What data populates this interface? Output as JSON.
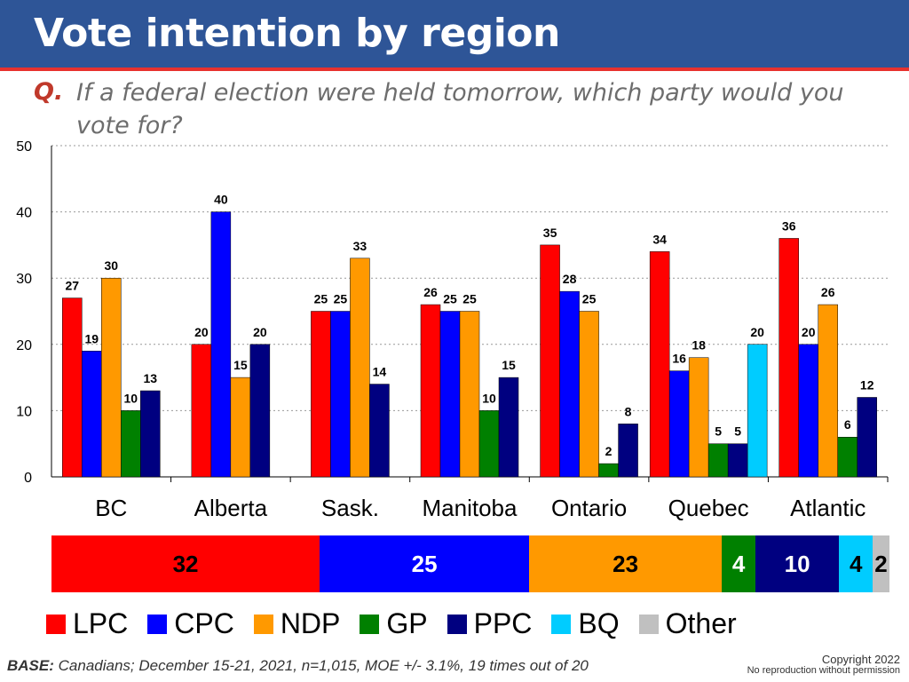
{
  "header": {
    "title": "Vote intention by region"
  },
  "question": {
    "marker": "Q.",
    "text": "If a federal election were held tomorrow, which party would you vote for?"
  },
  "colors": {
    "LPC": "#ff0000",
    "CPC": "#0000ff",
    "NDP": "#ff9900",
    "GP": "#008000",
    "PPC": "#000080",
    "BQ": "#00ccff",
    "Other": "#c0c0c0",
    "header_bg": "#2e5597",
    "header_rule": "#e8322e"
  },
  "chart_data": [
    {
      "type": "bar",
      "categories": [
        "BC",
        "Alberta",
        "Sask.",
        "Manitoba",
        "Ontario",
        "Quebec",
        "Atlantic"
      ],
      "ylim": [
        0,
        50
      ],
      "yticks": [
        "0",
        "10",
        "20",
        "30",
        "40",
        "50"
      ],
      "grid": true,
      "series": [
        {
          "name": "LPC",
          "values": [
            27,
            20,
            25,
            26,
            35,
            34,
            36
          ]
        },
        {
          "name": "CPC",
          "values": [
            19,
            40,
            25,
            25,
            28,
            16,
            20
          ]
        },
        {
          "name": "NDP",
          "values": [
            30,
            15,
            33,
            25,
            25,
            18,
            26
          ]
        },
        {
          "name": "GP",
          "values": [
            10,
            null,
            null,
            10,
            2,
            5,
            6
          ]
        },
        {
          "name": "PPC",
          "values": [
            13,
            20,
            14,
            15,
            8,
            5,
            12
          ]
        },
        {
          "name": "BQ",
          "values": [
            null,
            null,
            null,
            null,
            null,
            20,
            null
          ]
        }
      ]
    },
    {
      "type": "bar",
      "orientation": "horizontal-stacked",
      "series": [
        {
          "name": "LPC",
          "values": [
            32
          ]
        },
        {
          "name": "CPC",
          "values": [
            25
          ]
        },
        {
          "name": "NDP",
          "values": [
            23
          ]
        },
        {
          "name": "GP",
          "values": [
            4
          ]
        },
        {
          "name": "PPC",
          "values": [
            10
          ]
        },
        {
          "name": "BQ",
          "values": [
            4
          ]
        },
        {
          "name": "Other",
          "values": [
            2
          ]
        }
      ]
    }
  ],
  "legend": [
    "LPC",
    "CPC",
    "NDP",
    "GP",
    "PPC",
    "BQ",
    "Other"
  ],
  "footer": {
    "base_label": "BASE:",
    "base_text": " Canadians; December 15-21, 2021, n=1,015,  MOE +/- 3.1%, 19 times out of 20",
    "copyright": "Copyright 2022",
    "notice": "No reproduction without permission"
  }
}
